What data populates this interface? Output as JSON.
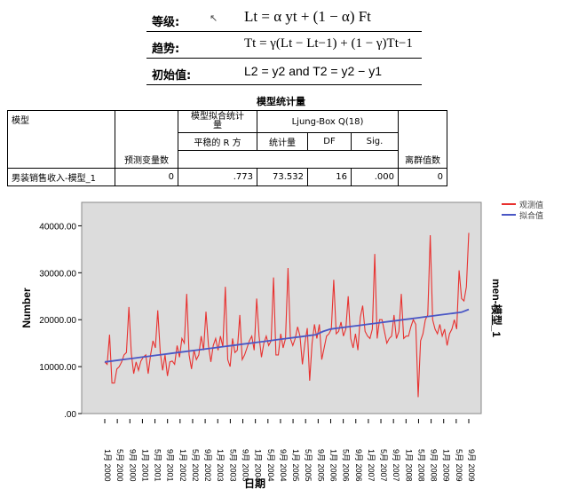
{
  "formula": {
    "level_label": "等级:",
    "level_eq": "Lt = α yt + (1 − α) Ft",
    "trend_label": "趋势:",
    "trend_eq": "Tt = γ(Lt − Lt−1) + (1 − γ)Tt−1",
    "init_label": "初始值:",
    "init_eq": "L2 = y2  and  T2 = y2 − y1"
  },
  "table": {
    "title": "模型统计量",
    "h_model": "模型",
    "h_predictors": "预测变量数",
    "h_fit_a": "模型拟合统计",
    "h_fit_b": "量",
    "h_stat_rsq": "平稳的 R 方",
    "h_ljung": "Ljung-Box Q(18)",
    "h_stat": "统计量",
    "h_df": "DF",
    "h_sig": "Sig.",
    "h_outliers": "离群值数",
    "row": {
      "model": "男装销售收入-模型_1",
      "predictors": "0",
      "rsq": ".773",
      "stat": "73.532",
      "df": "16",
      "sig": ".000",
      "outliers": "0"
    }
  },
  "chart_data": {
    "type": "line",
    "ylabel": "Number",
    "xlabel": "日期",
    "right_label": "men-模型_1",
    "ylim": [
      0,
      45000
    ],
    "yticks": [
      ".00",
      "10000.00",
      "20000.00",
      "30000.00",
      "40000.00"
    ],
    "xticks": [
      "1月 2000",
      "5月 2000",
      "9月 2000",
      "1月 2001",
      "5月 2001",
      "9月 2001",
      "1月 2002",
      "5月 2002",
      "9月 2002",
      "1月 2003",
      "5月 2003",
      "9月 2003",
      "1月 2004",
      "5月 2004",
      "9月 2004",
      "1月 2005",
      "5月 2005",
      "9月 2005",
      "1月 2006",
      "5月 2006",
      "9月 2006",
      "1月 2007",
      "5月 2007",
      "9月 2007",
      "1月 2008",
      "5月 2008",
      "9月 2008",
      "1月 2009",
      "5月 2009",
      "9月 2009"
    ],
    "legend_position": "top-right",
    "series": [
      {
        "name": "观测值",
        "color": "#e8312f",
        "values": [
          11000,
          10500,
          16800,
          6500,
          6500,
          9500,
          10000,
          11000,
          12500,
          13000,
          22700,
          12800,
          8500,
          11000,
          9200,
          11200,
          12000,
          12500,
          8500,
          12500,
          15500,
          14000,
          22000,
          13000,
          9200,
          12500,
          8000,
          11000,
          11200,
          10500,
          14500,
          12000,
          16000,
          15000,
          25500,
          12500,
          9500,
          13500,
          11500,
          12500,
          16500,
          13500,
          21700,
          14500,
          11000,
          14500,
          16000,
          13500,
          16500,
          14200,
          27000,
          11500,
          10000,
          16000,
          13000,
          13500,
          21000,
          11500,
          12500,
          14000,
          15500,
          16500,
          13500,
          24500,
          16500,
          12000,
          15000,
          16500,
          14500,
          15500,
          29000,
          12500,
          12500,
          17000,
          14000,
          16000,
          31000,
          16000,
          14500,
          16000,
          18500,
          16500,
          10500,
          15000,
          18200,
          7000,
          15000,
          19000,
          16000,
          19000,
          11500,
          14000,
          16500,
          17000,
          18000,
          28500,
          17000,
          17500,
          19500,
          16500,
          18000,
          25000,
          16000,
          14000,
          17000,
          13500,
          20500,
          23000,
          17500,
          16500,
          16000,
          18000,
          34000,
          16000,
          20000,
          20000,
          17500,
          15000,
          16000,
          16500,
          21000,
          16000,
          17500,
          25500,
          16000,
          16500,
          16500,
          18500,
          20000,
          19000,
          3500,
          15500,
          17000,
          20000,
          21000,
          38000,
          20000,
          18000,
          17000,
          19000,
          16500,
          18000,
          14500,
          17000,
          18000,
          20000,
          18000,
          30500,
          24500,
          24000,
          27000,
          38500
        ]
      },
      {
        "name": "拟合值",
        "color": "#4a57c5",
        "values": [
          11000,
          11200,
          11400,
          11600,
          11800,
          12000,
          12200,
          12400,
          12600,
          12800,
          13000,
          13200,
          13400,
          13600,
          13800,
          14000,
          14200,
          14400,
          14600,
          14800,
          15000,
          15200,
          15400,
          15600,
          15800,
          16000,
          16200,
          16400,
          16600,
          16800,
          17500,
          18000,
          18200,
          18400,
          18600,
          18800,
          19000,
          19200,
          19400,
          19600,
          19800,
          20000,
          20200,
          20400,
          20600,
          20800,
          21000,
          21200,
          21400,
          21600,
          22200
        ]
      }
    ]
  }
}
